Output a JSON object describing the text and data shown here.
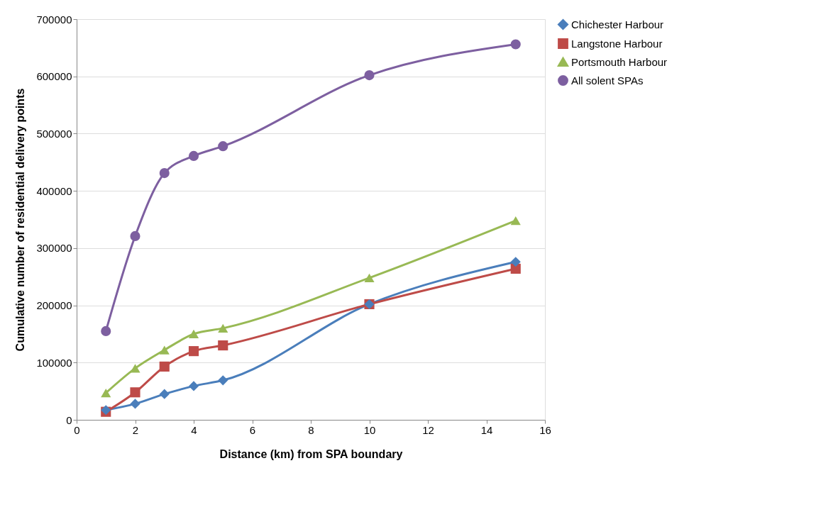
{
  "chart_data": {
    "type": "line",
    "xlabel": "Distance (km) from SPA boundary",
    "ylabel": "Cumulative number  of residential delivery points",
    "x": [
      1,
      2,
      3,
      4,
      5,
      10,
      15
    ],
    "series": [
      {
        "name": "Chichester Harbour",
        "color": "#4a7ebb",
        "marker": "diamond",
        "values": [
          17000,
          28000,
          45000,
          59000,
          69000,
          202000,
          276000
        ]
      },
      {
        "name": "Langstone Harbour",
        "color": "#be4b48",
        "marker": "square",
        "values": [
          14000,
          48000,
          93000,
          120000,
          130000,
          202000,
          264000
        ]
      },
      {
        "name": "Portsmouth Harbour",
        "color": "#98b954",
        "marker": "triangle",
        "values": [
          47000,
          90000,
          122000,
          150000,
          160000,
          248000,
          348000
        ]
      },
      {
        "name": "All solent SPAs",
        "color": "#7d5fa0",
        "marker": "circle",
        "values": [
          155000,
          321000,
          431000,
          461000,
          478000,
          602000,
          656000
        ]
      }
    ],
    "xlim": [
      0,
      16
    ],
    "xticks": [
      0,
      2,
      4,
      6,
      8,
      10,
      12,
      14,
      16
    ],
    "ylim": [
      0,
      700000
    ],
    "yticks": [
      0,
      100000,
      200000,
      300000,
      400000,
      500000,
      600000,
      700000
    ],
    "grid": "y",
    "legend": "right"
  }
}
